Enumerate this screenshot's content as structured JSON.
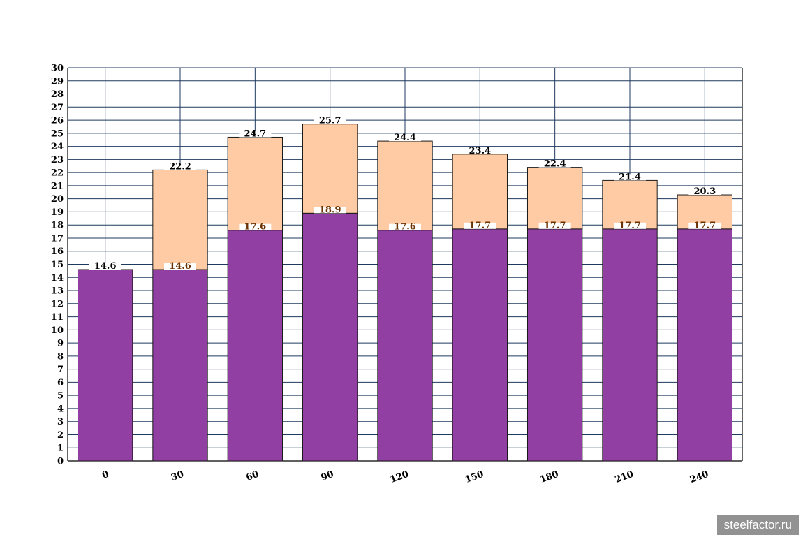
{
  "chart_data": {
    "type": "bar",
    "stacked": true,
    "categories": [
      "0",
      "30",
      "60",
      "90",
      "120",
      "150",
      "180",
      "210",
      "240"
    ],
    "totals": [
      14.6,
      22.2,
      24.7,
      25.7,
      24.4,
      23.4,
      22.4,
      21.4,
      20.3
    ],
    "series": [
      {
        "values": [
          14.6,
          14.6,
          17.6,
          18.9,
          17.6,
          17.7,
          17.7,
          17.7,
          17.7
        ],
        "color": "#923fa3"
      },
      {
        "values": [
          0,
          7.6,
          7.1,
          6.8,
          6.8,
          5.7,
          4.7,
          3.7,
          2.6
        ],
        "color": "#ffcba4"
      }
    ],
    "base_labels": [
      "",
      "14.6",
      "17.6",
      "18.9",
      "17.6",
      "17.7",
      "17.7",
      "17.7",
      "17.7"
    ],
    "total_labels": [
      "14.6",
      "22.2",
      "24.7",
      "25.7",
      "24.4",
      "23.4",
      "22.4",
      "21.4",
      "20.3"
    ],
    "ylim": [
      0,
      30
    ],
    "ytick_step": 1,
    "grid": true,
    "grid_color": "#1f3a5f"
  },
  "watermark": "steelfactor.ru"
}
